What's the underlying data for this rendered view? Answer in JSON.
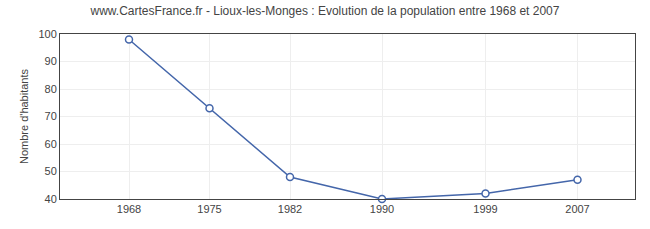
{
  "chart_data": {
    "type": "line",
    "title": "www.CartesFrance.fr - Lioux-les-Monges : Evolution de la population entre 1968 et 2007",
    "y_label": "Nombre d'habitants",
    "x": [
      1968,
      1975,
      1982,
      1990,
      1999,
      2007
    ],
    "values": [
      98,
      73,
      48,
      40,
      42,
      47
    ],
    "color": "#4466aa",
    "marker": "o",
    "xlim": [
      1962,
      2012
    ],
    "ylim": [
      40,
      100
    ],
    "xticks": [
      1968,
      1975,
      1982,
      1990,
      1999,
      2007
    ],
    "yticks": [
      40,
      50,
      60,
      70,
      80,
      90,
      100
    ],
    "grid": true
  }
}
